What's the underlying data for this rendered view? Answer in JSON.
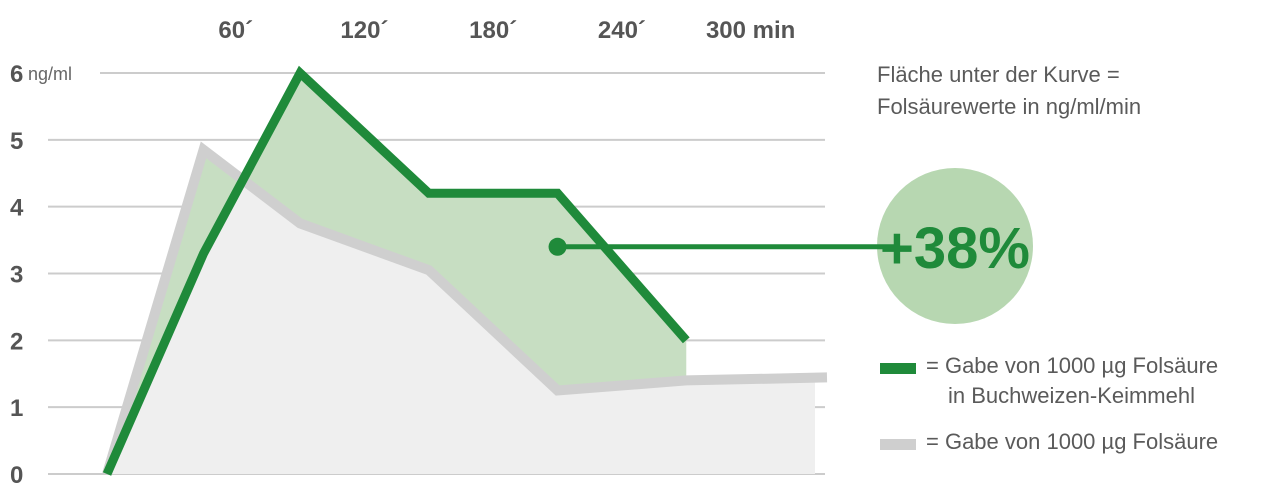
{
  "chart_data": {
    "type": "area",
    "x": [
      0,
      45,
      90,
      150,
      210,
      270,
      330
    ],
    "x_ticks": [
      {
        "value": 60,
        "label": "60´"
      },
      {
        "value": 120,
        "label": "120´"
      },
      {
        "value": 180,
        "label": "180´"
      },
      {
        "value": 240,
        "label": "240´"
      },
      {
        "value": 300,
        "label": "300 min"
      }
    ],
    "y_ticks": [
      0,
      1,
      2,
      3,
      4,
      5,
      6
    ],
    "y_unit": "ng/ml",
    "xlim": [
      0,
      330
    ],
    "ylim": [
      0,
      6
    ],
    "grid": true,
    "series": [
      {
        "key": "green",
        "color": "#1f8a3a",
        "fill": "#c7dec2",
        "values": [
          0,
          3.3,
          6.0,
          4.2,
          4.2,
          2.0,
          null
        ]
      },
      {
        "key": "grey",
        "color": "#cfcfcf",
        "fill": "#efefef",
        "values": [
          0,
          4.85,
          3.75,
          3.05,
          1.25,
          1.4,
          null
        ]
      }
    ],
    "annotation": {
      "text": "+38%",
      "point": {
        "x": 210,
        "y": 3.4
      },
      "color": "#1f8a3a",
      "circle_color": "#b7d7b1"
    },
    "note": [
      "Fläche unter der Kurve =",
      "Folsäurewerte in ng/ml/min"
    ],
    "legend": [
      {
        "color": "#1f8a3a",
        "lines": [
          "= Gabe von 1000 µg Folsäure",
          "in Buchweizen-Keimmehl"
        ]
      },
      {
        "color": "#cfcfcf",
        "lines": [
          "= Gabe von 1000 µg Folsäure"
        ]
      }
    ]
  }
}
